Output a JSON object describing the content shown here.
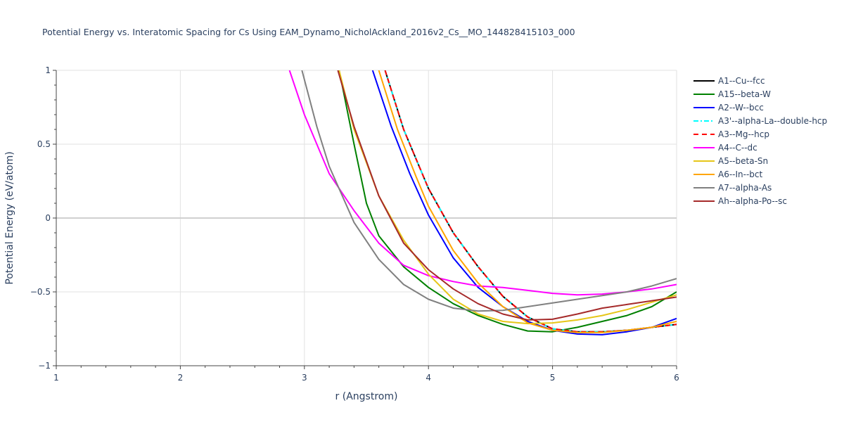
{
  "chart_title": "Potential Energy vs. Interatomic Spacing for Cs Using EAM_Dynamo_NicholAckland_2016v2_Cs__MO_144828415103_000",
  "chart_data": {
    "type": "line",
    "title": "Potential Energy vs. Interatomic Spacing for Cs Using EAM_Dynamo_NicholAckland_2016v2_Cs__MO_144828415103_000",
    "xlabel": "r (Angstrom)",
    "ylabel": "Potential Energy (eV/atom)",
    "xlim": [
      1,
      6
    ],
    "ylim": [
      -1,
      1
    ],
    "x_ticks": [
      "1",
      "2",
      "3",
      "4",
      "5",
      "6"
    ],
    "y_ticks": [
      "−1",
      "−0.5",
      "0",
      "0.5",
      "1"
    ],
    "grid": true,
    "legend_position": "right",
    "series": [
      {
        "name": "A1--Cu--fcc",
        "color": "#000000",
        "dash": "solid",
        "points": [
          [
            3.65,
            1.0
          ],
          [
            3.8,
            0.6
          ],
          [
            4.0,
            0.2
          ],
          [
            4.2,
            -0.1
          ],
          [
            4.4,
            -0.33
          ],
          [
            4.6,
            -0.53
          ],
          [
            4.8,
            -0.67
          ],
          [
            5.0,
            -0.75
          ],
          [
            5.2,
            -0.77
          ],
          [
            5.4,
            -0.77
          ],
          [
            5.6,
            -0.76
          ],
          [
            5.8,
            -0.74
          ],
          [
            6.0,
            -0.72
          ]
        ]
      },
      {
        "name": "A15--beta-W",
        "color": "#008000",
        "dash": "solid",
        "points": [
          [
            3.28,
            1.0
          ],
          [
            3.4,
            0.5
          ],
          [
            3.5,
            0.1
          ],
          [
            3.6,
            -0.12
          ],
          [
            3.8,
            -0.33
          ],
          [
            4.0,
            -0.47
          ],
          [
            4.2,
            -0.58
          ],
          [
            4.4,
            -0.66
          ],
          [
            4.6,
            -0.72
          ],
          [
            4.8,
            -0.765
          ],
          [
            5.0,
            -0.77
          ],
          [
            5.2,
            -0.74
          ],
          [
            5.4,
            -0.7
          ],
          [
            5.6,
            -0.66
          ],
          [
            5.8,
            -0.6
          ],
          [
            6.0,
            -0.5
          ]
        ]
      },
      {
        "name": "A2--W--bcc",
        "color": "#0000ff",
        "dash": "solid",
        "points": [
          [
            3.55,
            1.0
          ],
          [
            3.7,
            0.62
          ],
          [
            3.85,
            0.3
          ],
          [
            4.0,
            0.02
          ],
          [
            4.2,
            -0.27
          ],
          [
            4.4,
            -0.47
          ],
          [
            4.6,
            -0.6
          ],
          [
            4.8,
            -0.7
          ],
          [
            5.0,
            -0.76
          ],
          [
            5.2,
            -0.785
          ],
          [
            5.4,
            -0.79
          ],
          [
            5.6,
            -0.77
          ],
          [
            5.8,
            -0.74
          ],
          [
            6.0,
            -0.68
          ]
        ]
      },
      {
        "name": "A3'--alpha-La--double-hcp",
        "color": "#00ffff",
        "dash": "dashdot",
        "points": [
          [
            3.65,
            1.0
          ],
          [
            3.8,
            0.6
          ],
          [
            4.0,
            0.2
          ],
          [
            4.2,
            -0.1
          ],
          [
            4.4,
            -0.33
          ],
          [
            4.6,
            -0.53
          ],
          [
            4.8,
            -0.67
          ],
          [
            5.0,
            -0.75
          ],
          [
            5.2,
            -0.77
          ],
          [
            5.4,
            -0.77
          ],
          [
            5.6,
            -0.76
          ],
          [
            5.8,
            -0.74
          ],
          [
            6.0,
            -0.72
          ]
        ]
      },
      {
        "name": "A3--Mg--hcp",
        "color": "#ff0000",
        "dash": "dash",
        "points": [
          [
            3.65,
            1.0
          ],
          [
            3.8,
            0.6
          ],
          [
            4.0,
            0.2
          ],
          [
            4.2,
            -0.1
          ],
          [
            4.4,
            -0.33
          ],
          [
            4.6,
            -0.53
          ],
          [
            4.8,
            -0.67
          ],
          [
            5.0,
            -0.75
          ],
          [
            5.2,
            -0.77
          ],
          [
            5.4,
            -0.77
          ],
          [
            5.6,
            -0.76
          ],
          [
            5.8,
            -0.74
          ],
          [
            6.0,
            -0.72
          ]
        ]
      },
      {
        "name": "A4--C--dc",
        "color": "#ff00ff",
        "dash": "solid",
        "points": [
          [
            2.88,
            1.0
          ],
          [
            3.0,
            0.7
          ],
          [
            3.2,
            0.3
          ],
          [
            3.4,
            0.05
          ],
          [
            3.6,
            -0.17
          ],
          [
            3.8,
            -0.32
          ],
          [
            4.0,
            -0.39
          ],
          [
            4.2,
            -0.43
          ],
          [
            4.4,
            -0.46
          ],
          [
            4.6,
            -0.47
          ],
          [
            4.8,
            -0.49
          ],
          [
            5.0,
            -0.51
          ],
          [
            5.2,
            -0.52
          ],
          [
            5.4,
            -0.515
          ],
          [
            5.6,
            -0.5
          ],
          [
            5.8,
            -0.48
          ],
          [
            6.0,
            -0.45
          ]
        ]
      },
      {
        "name": "A5--beta-Sn",
        "color": "#e6c619",
        "dash": "solid",
        "points": [
          [
            3.28,
            1.0
          ],
          [
            3.4,
            0.6
          ],
          [
            3.6,
            0.15
          ],
          [
            3.8,
            -0.15
          ],
          [
            4.0,
            -0.38
          ],
          [
            4.2,
            -0.55
          ],
          [
            4.4,
            -0.65
          ],
          [
            4.6,
            -0.7
          ],
          [
            4.8,
            -0.715
          ],
          [
            5.0,
            -0.71
          ],
          [
            5.2,
            -0.69
          ],
          [
            5.4,
            -0.66
          ],
          [
            5.6,
            -0.62
          ],
          [
            5.8,
            -0.57
          ],
          [
            6.0,
            -0.52
          ]
        ]
      },
      {
        "name": "A6--In--bct",
        "color": "#ffa500",
        "dash": "solid",
        "points": [
          [
            3.6,
            1.0
          ],
          [
            3.75,
            0.6
          ],
          [
            3.9,
            0.28
          ],
          [
            4.0,
            0.08
          ],
          [
            4.2,
            -0.22
          ],
          [
            4.4,
            -0.44
          ],
          [
            4.6,
            -0.6
          ],
          [
            4.8,
            -0.71
          ],
          [
            5.0,
            -0.76
          ],
          [
            5.2,
            -0.775
          ],
          [
            5.4,
            -0.775
          ],
          [
            5.6,
            -0.76
          ],
          [
            5.8,
            -0.74
          ],
          [
            6.0,
            -0.7
          ]
        ]
      },
      {
        "name": "A7--alpha-As",
        "color": "#808080",
        "dash": "solid",
        "points": [
          [
            2.98,
            1.0
          ],
          [
            3.1,
            0.62
          ],
          [
            3.2,
            0.35
          ],
          [
            3.4,
            -0.03
          ],
          [
            3.6,
            -0.28
          ],
          [
            3.8,
            -0.45
          ],
          [
            4.0,
            -0.55
          ],
          [
            4.2,
            -0.61
          ],
          [
            4.4,
            -0.63
          ],
          [
            4.6,
            -0.625
          ],
          [
            4.8,
            -0.6
          ],
          [
            5.0,
            -0.575
          ],
          [
            5.2,
            -0.55
          ],
          [
            5.4,
            -0.525
          ],
          [
            5.6,
            -0.5
          ],
          [
            5.8,
            -0.46
          ],
          [
            6.0,
            -0.41
          ]
        ]
      },
      {
        "name": "Ah--alpha-Po--sc",
        "color": "#a52a2a",
        "dash": "solid",
        "points": [
          [
            3.27,
            1.0
          ],
          [
            3.4,
            0.62
          ],
          [
            3.6,
            0.15
          ],
          [
            3.8,
            -0.17
          ],
          [
            4.0,
            -0.35
          ],
          [
            4.2,
            -0.48
          ],
          [
            4.4,
            -0.58
          ],
          [
            4.6,
            -0.65
          ],
          [
            4.8,
            -0.69
          ],
          [
            5.0,
            -0.685
          ],
          [
            5.2,
            -0.65
          ],
          [
            5.4,
            -0.61
          ],
          [
            5.6,
            -0.585
          ],
          [
            5.8,
            -0.56
          ],
          [
            6.0,
            -0.535
          ]
        ]
      }
    ]
  }
}
